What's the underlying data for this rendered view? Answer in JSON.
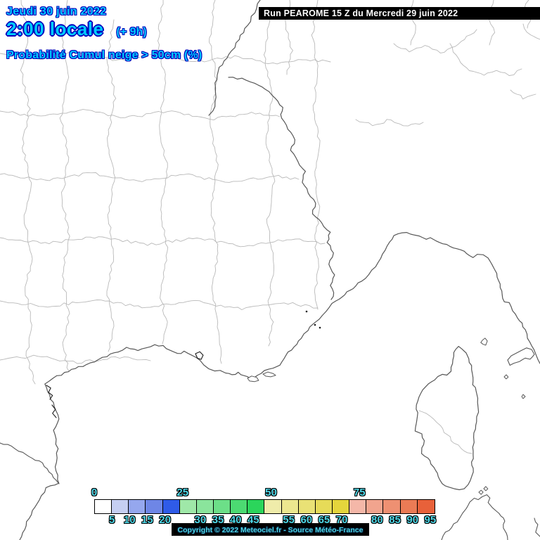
{
  "title_block": {
    "date": "Jeudi 30 juin 2022",
    "time": "2:00 locale",
    "run_offset": "(+ 9h)",
    "variable": "Probabilité Cumul neige > 50cm (%)"
  },
  "run_banner": {
    "text": "Run PEAROME 15 Z du Mercredi 29 juin 2022"
  },
  "copyright_banner": {
    "text": "Copyright © 2022 Meteociel.fr - Source Météo-France"
  },
  "legend": {
    "unit": "%",
    "min": 0,
    "max": 100,
    "step": 5,
    "major_ticks": [
      {
        "value": 0,
        "label": "0"
      },
      {
        "value": 25,
        "label": "25"
      },
      {
        "value": 50,
        "label": "50"
      },
      {
        "value": 75,
        "label": "75"
      }
    ],
    "minor_ticks": [
      {
        "value": 5,
        "label": "5"
      },
      {
        "value": 10,
        "label": "10"
      },
      {
        "value": 15,
        "label": "15"
      },
      {
        "value": 20,
        "label": "20"
      },
      {
        "value": 30,
        "label": "30"
      },
      {
        "value": 35,
        "label": "35"
      },
      {
        "value": 40,
        "label": "40"
      },
      {
        "value": 45,
        "label": "45"
      },
      {
        "value": 55,
        "label": "55"
      },
      {
        "value": 60,
        "label": "60"
      },
      {
        "value": 65,
        "label": "65"
      },
      {
        "value": 70,
        "label": "70"
      },
      {
        "value": 80,
        "label": "80"
      },
      {
        "value": 85,
        "label": "85"
      },
      {
        "value": 90,
        "label": "90"
      },
      {
        "value": 95,
        "label": "95"
      }
    ],
    "cells": [
      {
        "range": "0-5",
        "color": "#ffffff"
      },
      {
        "range": "5-10",
        "color": "#c6cff2"
      },
      {
        "range": "10-15",
        "color": "#95a7ee"
      },
      {
        "range": "15-20",
        "color": "#6e86e6"
      },
      {
        "range": "20-25",
        "color": "#2f5be8"
      },
      {
        "range": "25-30",
        "color": "#9fe8a8"
      },
      {
        "range": "30-35",
        "color": "#8ae49c"
      },
      {
        "range": "35-40",
        "color": "#6cdf88"
      },
      {
        "range": "40-45",
        "color": "#4cda72"
      },
      {
        "range": "45-50",
        "color": "#2bd55b"
      },
      {
        "range": "50-55",
        "color": "#efecaa"
      },
      {
        "range": "55-60",
        "color": "#ece78f"
      },
      {
        "range": "60-65",
        "color": "#e9e175"
      },
      {
        "range": "65-70",
        "color": "#e6db58"
      },
      {
        "range": "70-75",
        "color": "#e5d53c"
      },
      {
        "range": "75-80",
        "color": "#f4b7a8"
      },
      {
        "range": "80-85",
        "color": "#f1a48e"
      },
      {
        "range": "85-90",
        "color": "#ee9072"
      },
      {
        "range": "90-95",
        "color": "#eb7b55"
      },
      {
        "range": "95-100",
        "color": "#e8613a"
      }
    ]
  },
  "colors": {
    "title_fill": "#00ccff",
    "title_outline": "#0000bb",
    "tick_fill": "#4fd8e8",
    "banner_background": "#000000",
    "run_text": "#ffffff",
    "coastline": "#585858",
    "department_line": "#b9b9b9"
  }
}
